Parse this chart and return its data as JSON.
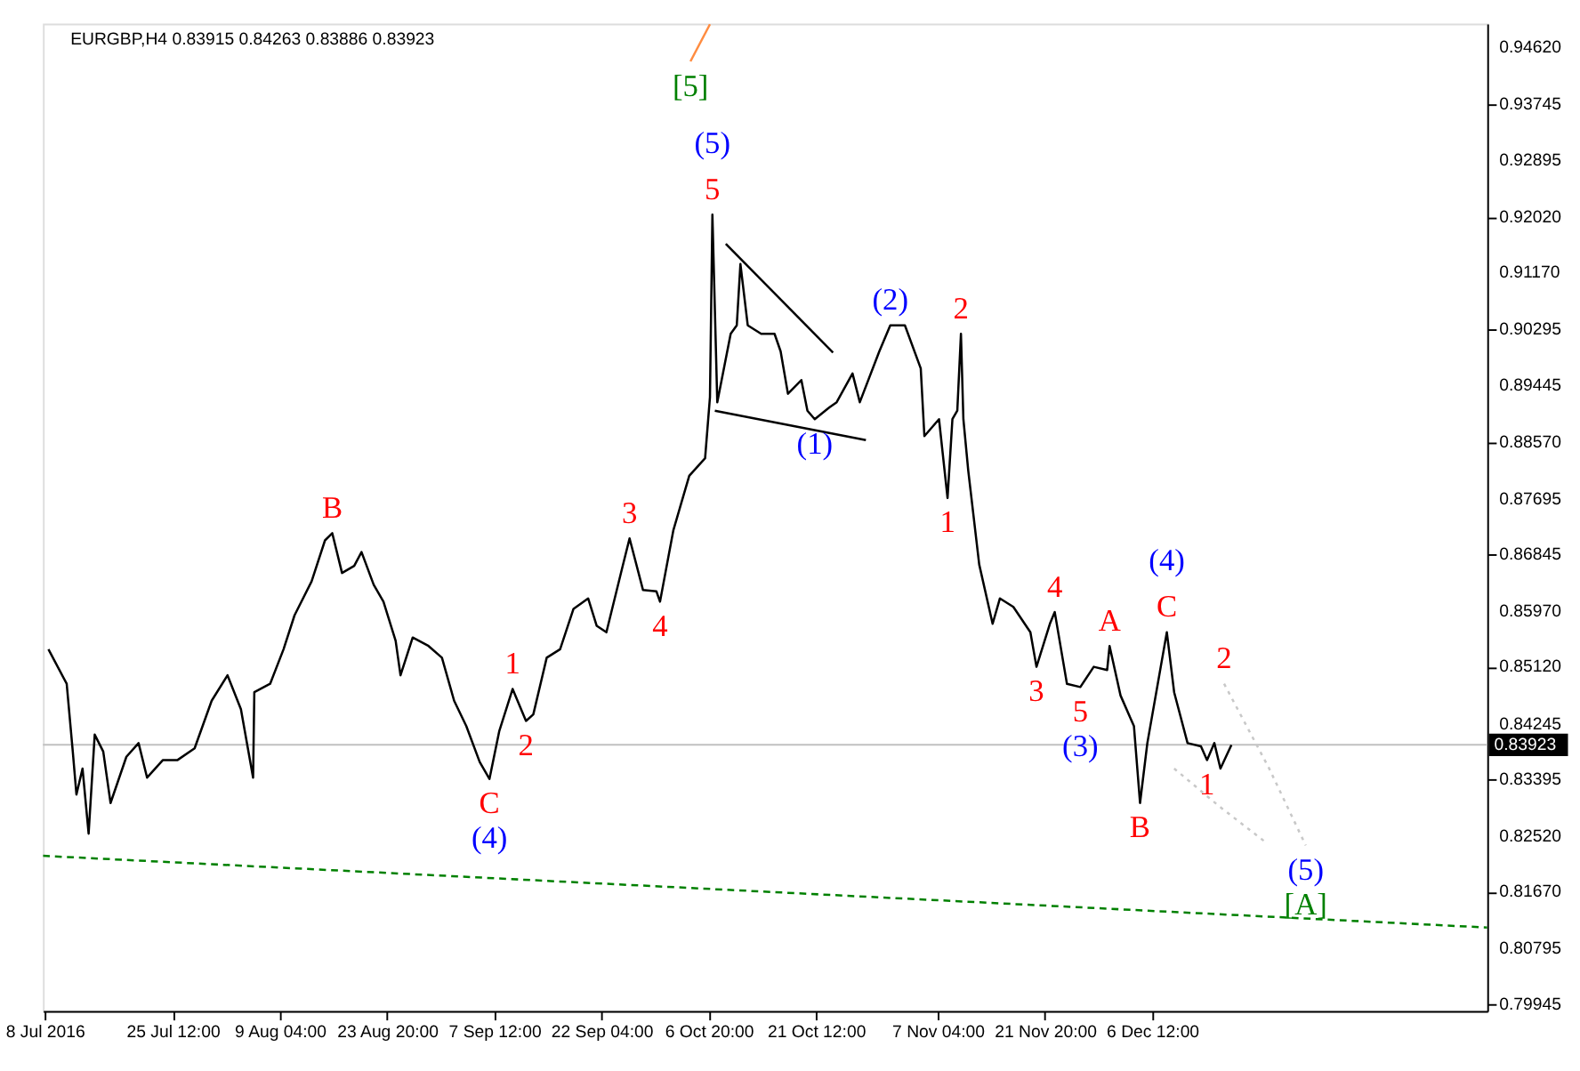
{
  "chart_data": {
    "type": "line",
    "title": "EURGBP,H4  0.83915 0.84263 0.83886 0.83923",
    "xlim": [
      "2016-07-07T18:00",
      "2017-01-21T08:00"
    ],
    "xticks": [
      {
        "value": "2016-07-08",
        "label": "8 Jul 2016"
      },
      {
        "value": "2016-07-25T12:00",
        "label": "25 Jul 12:00"
      },
      {
        "value": "2016-08-09T04:00",
        "label": "9 Aug 04:00"
      },
      {
        "value": "2016-08-23T20:00",
        "label": "23 Aug 20:00"
      },
      {
        "value": "2016-09-07T12:00",
        "label": "7 Sep 12:00"
      },
      {
        "value": "2016-09-22T04:00",
        "label": "22 Sep 04:00"
      },
      {
        "value": "2016-10-06T20:00",
        "label": "6 Oct 20:00"
      },
      {
        "value": "2016-10-21T12:00",
        "label": "21 Oct 12:00"
      },
      {
        "value": "2016-11-07T04:00",
        "label": "7 Nov 04:00"
      },
      {
        "value": "2016-11-21T20:00",
        "label": "21 Nov 20:00"
      },
      {
        "value": "2016-12-06T12:00",
        "label": "6 Dec 12:00"
      }
    ],
    "ylim": [
      0.7984,
      0.9499
    ],
    "yticks": [
      {
        "value": 0.9462,
        "label": "0.94620"
      },
      {
        "value": 0.93745,
        "label": "0.93745"
      },
      {
        "value": 0.92895,
        "label": "0.92895"
      },
      {
        "value": 0.9202,
        "label": "0.92020"
      },
      {
        "value": 0.9117,
        "label": "0.91170"
      },
      {
        "value": 0.90295,
        "label": "0.90295"
      },
      {
        "value": 0.89445,
        "label": "0.89445"
      },
      {
        "value": 0.8857,
        "label": "0.88570"
      },
      {
        "value": 0.87695,
        "label": "0.87695"
      },
      {
        "value": 0.86845,
        "label": "0.86845"
      },
      {
        "value": 0.8597,
        "label": "0.85970"
      },
      {
        "value": 0.8512,
        "label": "0.85120"
      },
      {
        "value": 0.84245,
        "label": "0.84245"
      },
      {
        "value": 0.83395,
        "label": "0.83395"
      },
      {
        "value": 0.8252,
        "label": "0.82520"
      },
      {
        "value": 0.8167,
        "label": "0.81670"
      },
      {
        "value": 0.80795,
        "label": "0.80795"
      },
      {
        "value": 0.79945,
        "label": "0.79945"
      }
    ],
    "grid": false,
    "marker": "none",
    "series": [
      {
        "color": "#000000",
        "line_style": "solid",
        "x": [
          "2016-07-08T12:00",
          "2016-07-11T00:00",
          "2016-07-11T20:00",
          "2016-07-12T08:00",
          "2016-07-13T04:00",
          "2016-07-14T00:00",
          "2016-07-14T20:00",
          "2016-07-16T00:00",
          "2016-07-17T00:00",
          "2016-07-19T04:00",
          "2016-07-20T20:00",
          "2016-07-22T00:00",
          "2016-07-24T04:00",
          "2016-07-26T04:00",
          "2016-07-28T12:00",
          "2016-07-30T20:00",
          "2016-08-02T00:00",
          "2016-08-03T20:00",
          "2016-08-05T12:00",
          "2016-08-05T16:00",
          "2016-08-07T20:00",
          "2016-08-09T16:00",
          "2016-08-11T04:00",
          "2016-08-13T12:00",
          "2016-08-15T08:00",
          "2016-08-16T08:00",
          "2016-08-17T16:00",
          "2016-08-19T08:00",
          "2016-08-20T08:00",
          "2016-08-22T00:00",
          "2016-08-23T08:00",
          "2016-08-25T00:00",
          "2016-08-25T16:00",
          "2016-08-27T08:00",
          "2016-08-29T12:00",
          "2016-08-31T08:00",
          "2016-09-02T00:00",
          "2016-09-03T16:00",
          "2016-09-05T12:00",
          "2016-09-06T20:00",
          "2016-09-08T04:00",
          "2016-09-10T00:00",
          "2016-09-11T20:00",
          "2016-09-12T20:00",
          "2016-09-14T16:00",
          "2016-09-16T12:00",
          "2016-09-18T08:00",
          "2016-09-20T08:00",
          "2016-09-21T12:00",
          "2016-09-22T20:00",
          "2016-09-25T00:00",
          "2016-09-26T00:00",
          "2016-09-27T20:00",
          "2016-09-29T16:00",
          "2016-09-30T04:00",
          "2016-10-02T00:00",
          "2016-10-04T04:00",
          "2016-10-06T08:00",
          "2016-10-07T00:00",
          "2016-10-07T08:00",
          "2016-10-08T00:00",
          "2016-10-09T20:00",
          "2016-10-10T16:00",
          "2016-10-11T04:00",
          "2016-10-12T04:00",
          "2016-10-14T00:00",
          "2016-10-15T20:00",
          "2016-10-16T16:00",
          "2016-10-17T16:00",
          "2016-10-19T12:00",
          "2016-10-20T08:00",
          "2016-10-21T08:00",
          "2016-10-23T08:00",
          "2016-10-24T08:00",
          "2016-10-26T12:00",
          "2016-10-27T12:00",
          "2016-10-30T04:00",
          "2016-10-31T16:00",
          "2016-11-02T16:00",
          "2016-11-04T20:00",
          "2016-11-05T08:00",
          "2016-11-07T08:00",
          "2016-11-08T12:00",
          "2016-11-09T04:00",
          "2016-11-09T20:00",
          "2016-11-10T08:00",
          "2016-11-10T16:00",
          "2016-11-11T08:00",
          "2016-11-12T20:00",
          "2016-11-14T16:00",
          "2016-11-15T16:00",
          "2016-11-17T12:00",
          "2016-11-19T20:00",
          "2016-11-20T16:00",
          "2016-11-22T12:00",
          "2016-11-23T04:00",
          "2016-11-24T20:00",
          "2016-11-26T16:00",
          "2016-11-28T12:00",
          "2016-11-30T08:00",
          "2016-11-30T16:00",
          "2016-12-02T04:00",
          "2016-12-04T00:00",
          "2016-12-04T20:00",
          "2016-12-05T20:00",
          "2016-12-07T16:00",
          "2016-12-08T12:00",
          "2016-12-09T12:00",
          "2016-12-11T08:00",
          "2016-12-13T04:00",
          "2016-12-14T00:00",
          "2016-12-15T00:00",
          "2016-12-15T20:00",
          "2016-12-17T08:00"
        ],
        "values": [
          0.8539,
          0.8486,
          0.8382,
          0.8316,
          0.8356,
          0.8256,
          0.8408,
          0.8382,
          0.8303,
          0.8374,
          0.8395,
          0.8342,
          0.8369,
          0.8369,
          0.8387,
          0.846,
          0.8499,
          0.8447,
          0.8342,
          0.8473,
          0.8486,
          0.8539,
          0.8591,
          0.8643,
          0.8706,
          0.8717,
          0.8656,
          0.8667,
          0.8688,
          0.8638,
          0.8612,
          0.8552,
          0.8499,
          0.8557,
          0.8544,
          0.8526,
          0.846,
          0.8421,
          0.8366,
          0.834,
          0.8413,
          0.8478,
          0.8429,
          0.8439,
          0.8526,
          0.8539,
          0.8601,
          0.8617,
          0.8575,
          0.8565,
          0.8664,
          0.8709,
          0.863,
          0.8628,
          0.8612,
          0.8722,
          0.8805,
          0.8832,
          0.8926,
          0.9206,
          0.8918,
          0.9023,
          0.9036,
          0.913,
          0.9036,
          0.9023,
          0.9023,
          0.8996,
          0.8931,
          0.8952,
          0.8905,
          0.8892,
          0.891,
          0.8918,
          0.8962,
          0.8918,
          0.8996,
          0.9036,
          0.9036,
          0.897,
          0.8866,
          0.8892,
          0.8771,
          0.8892,
          0.8905,
          0.9023,
          0.8892,
          0.8813,
          0.8669,
          0.8578,
          0.8617,
          0.8604,
          0.8565,
          0.8512,
          0.8578,
          0.8596,
          0.8486,
          0.8481,
          0.8512,
          0.8507,
          0.8544,
          0.8468,
          0.8421,
          0.8303,
          0.8395,
          0.8512,
          0.8565,
          0.8473,
          0.8395,
          0.839,
          0.8369,
          0.8395,
          0.8356,
          0.8392
        ]
      },
      {
        "color": "#000000",
        "line_style": "solid",
        "x": [
          "2016-10-09T04:00",
          "2016-10-23T20:00"
        ],
        "values": [
          0.9161,
          0.8994
        ]
      },
      {
        "color": "#000000",
        "line_style": "solid",
        "x": [
          "2016-10-07T16:00",
          "2016-10-28T08:00"
        ],
        "values": [
          0.8905,
          0.886
        ]
      },
      {
        "color": "#008000",
        "line_style": "dashed",
        "x": [
          "2016-07-07T18:00",
          "2017-01-21T08:00"
        ],
        "values": [
          0.8222,
          0.8112
        ]
      },
      {
        "color": "#c8c8c8",
        "line_style": "dotted",
        "x": [
          "2016-12-16T08:00",
          "2016-12-22T12:00",
          "2016-12-27T12:00"
        ],
        "values": [
          0.8486,
          0.8356,
          0.8238
        ]
      },
      {
        "color": "#c8c8c8",
        "line_style": "dotted",
        "x": [
          "2016-12-09T12:00",
          "2016-12-15T16:00",
          "2016-12-22T00:00"
        ],
        "values": [
          0.8356,
          0.8298,
          0.8243
        ]
      },
      {
        "color": "#ff8c40",
        "line_style": "solid",
        "x": [
          "2016-10-04T08:00",
          "2016-10-07T00:00"
        ],
        "values": [
          0.9441,
          0.9498
        ]
      }
    ],
    "ref_lines": [
      {
        "axis": "y",
        "value": 0.83923,
        "label": "0.83923",
        "color": "#c0c0c0"
      }
    ],
    "annotations": [
      {
        "text": "[5]",
        "x": "2016-10-04T08:00",
        "y": 0.9441
      },
      {
        "text": "(5)",
        "x": "2016-10-07T08:00",
        "y": 0.9206
      },
      {
        "text": "5",
        "x": "2016-10-07T08:00",
        "y": 0.9206
      },
      {
        "text": "(2)",
        "x": "2016-10-31T16:00",
        "y": 0.9036
      },
      {
        "text": "2",
        "x": "2016-11-10T08:00",
        "y": 0.9023
      },
      {
        "text": "(1)",
        "x": "2016-10-21T08:00",
        "y": 0.8892
      },
      {
        "text": "1",
        "x": "2016-11-08T12:00",
        "y": 0.8771
      },
      {
        "text": "B",
        "x": "2016-08-16T08:00",
        "y": 0.8717
      },
      {
        "text": "3",
        "x": "2016-09-26T00:00",
        "y": 0.8709
      },
      {
        "text": "4",
        "x": "2016-09-30T04:00",
        "y": 0.8612
      },
      {
        "text": "1",
        "x": "2016-09-10T00:00",
        "y": 0.8478
      },
      {
        "text": "2",
        "x": "2016-09-11T20:00",
        "y": 0.8429
      },
      {
        "text": "C",
        "x": "2016-09-06T20:00",
        "y": 0.834
      },
      {
        "text": "(4)",
        "x": "2016-09-06T20:00",
        "y": 0.834
      },
      {
        "text": "4",
        "x": "2016-11-23T04:00",
        "y": 0.8596
      },
      {
        "text": "3",
        "x": "2016-11-20T16:00",
        "y": 0.8512
      },
      {
        "text": "5",
        "x": "2016-11-26T16:00",
        "y": 0.8481
      },
      {
        "text": "(3)",
        "x": "2016-11-26T16:00",
        "y": 0.8481
      },
      {
        "text": "A",
        "x": "2016-11-30T16:00",
        "y": 0.8544
      },
      {
        "text": "(4)",
        "x": "2016-12-08T12:00",
        "y": 0.8565
      },
      {
        "text": "C",
        "x": "2016-12-08T12:00",
        "y": 0.8565
      },
      {
        "text": "B",
        "x": "2016-12-04T20:00",
        "y": 0.8303
      },
      {
        "text": "1",
        "x": "2016-12-14T00:00",
        "y": 0.8369
      },
      {
        "text": "2",
        "x": "2016-12-16T08:00",
        "y": 0.8486
      },
      {
        "text": "(5)",
        "x": "2016-12-27T12:00",
        "y": 0.8238
      },
      {
        "text": "[A]",
        "x": "2016-12-27T12:00",
        "y": 0.8238
      }
    ]
  }
}
